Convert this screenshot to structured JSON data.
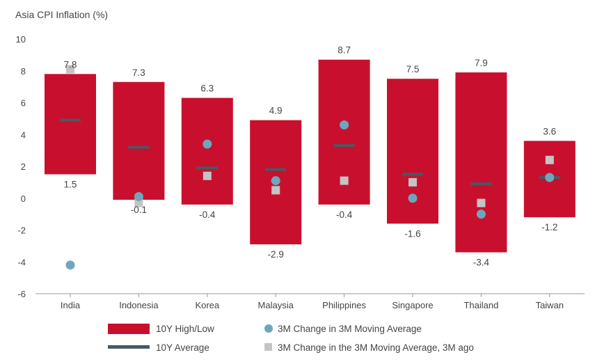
{
  "colors": {
    "range": "#c8102e",
    "average": "#485963",
    "current": "#6ca7bd",
    "ago": "#c4c4c4",
    "axis": "#999999"
  },
  "chart_data": {
    "type": "range-bar",
    "ylabel": "Asia CPI Inflation (%)",
    "ylim": [
      -6,
      10
    ],
    "yticks": [
      -6,
      -4,
      -2,
      0,
      2,
      4,
      6,
      8,
      10
    ],
    "grid": false,
    "legend_position": "bottom",
    "categories": [
      "India",
      "Indonesia",
      "Korea",
      "Malaysia",
      "Philippines",
      "Singapore",
      "Thailand",
      "Taiwan"
    ],
    "series": [
      {
        "name": "10Y High/Low",
        "high": [
          7.8,
          7.3,
          6.3,
          4.9,
          8.7,
          7.5,
          7.9,
          3.6
        ],
        "low": [
          1.5,
          -0.1,
          -0.4,
          -2.9,
          -0.4,
          -1.6,
          -3.4,
          -1.2
        ]
      },
      {
        "name": "10Y Average",
        "values": [
          4.9,
          3.2,
          1.9,
          1.8,
          3.3,
          1.5,
          0.9,
          1.3
        ]
      },
      {
        "name": "3M Change in 3M Moving Average",
        "values": [
          -4.2,
          0.1,
          3.4,
          1.1,
          4.6,
          0.0,
          -1.0,
          1.3
        ]
      },
      {
        "name": "3M Change in the 3M Moving Average, 3M ago",
        "values": [
          8.1,
          -0.3,
          1.4,
          0.5,
          1.1,
          1.0,
          -0.3,
          2.4
        ]
      }
    ]
  }
}
